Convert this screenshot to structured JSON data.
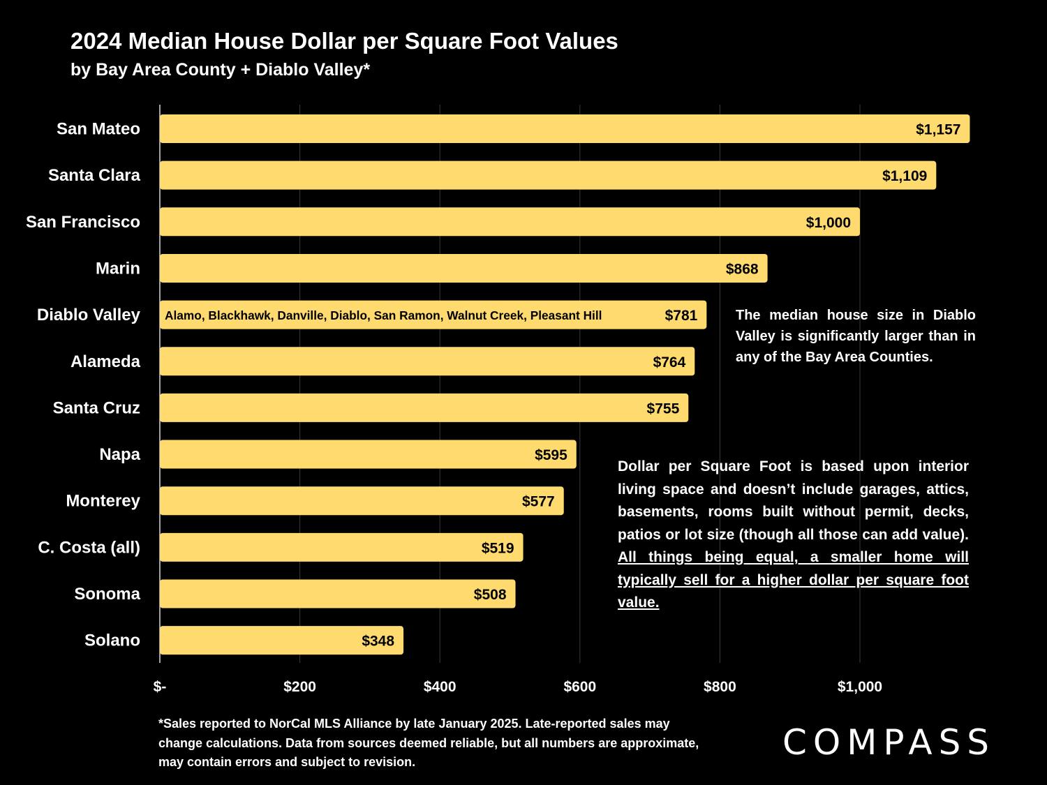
{
  "title": "2024 Median House Dollar per Square Foot Values",
  "subtitle": "by Bay Area County + Diablo Valley*",
  "colors": {
    "bar": "#FFDA6E",
    "background": "#000000",
    "text": "#FFFFFF",
    "gridline": "#3a3a3a"
  },
  "chart_data": {
    "type": "bar",
    "orientation": "horizontal",
    "title": "2024 Median House Dollar per Square Foot Values",
    "subtitle": "by Bay Area County + Diablo Valley*",
    "categories": [
      "San Mateo",
      "Santa Clara",
      "San Francisco",
      "Marin",
      "Diablo Valley",
      "Alameda",
      "Santa Cruz",
      "Napa",
      "Monterey",
      "C. Costa (all)",
      "Sonoma",
      "Solano"
    ],
    "values": [
      1157,
      1109,
      1000,
      868,
      781,
      764,
      755,
      595,
      577,
      519,
      508,
      348
    ],
    "data_labels": [
      "$1,157",
      "$1,109",
      "$1,000",
      "$868",
      "$781",
      "$764",
      "$755",
      "$595",
      "$577",
      "$519",
      "$508",
      "$348"
    ],
    "bar_annotations": [
      {
        "category": "Diablo Valley",
        "text": "Alamo, Blackhawk, Danville, Diablo, San Ramon, Walnut Creek, Pleasant Hill"
      }
    ],
    "x_ticks": [
      0,
      200,
      400,
      600,
      800,
      1000
    ],
    "x_tick_labels": [
      "$-",
      "$200",
      "$400",
      "$600",
      "$800",
      "$1,000"
    ],
    "xlim": [
      0,
      1180
    ],
    "grid": "vertical",
    "legend": "none"
  },
  "notes": {
    "house_size": "The median house size in Diablo Valley is significantly larger than in any of the Bay Area Counties.",
    "dpsf_intro": "Dollar per Square Foot is based upon interior living space and doesn’t include garages, attics, basements, rooms built without permit, decks, patios or lot size (though all those can add value). ",
    "dpsf_emphasis": "All things being equal, a smaller home will typically sell for a higher dollar per square foot value."
  },
  "footnote": "*Sales reported to NorCal MLS Alliance by late January 2025. Late-reported sales may change calculations. Data from sources deemed reliable, but all numbers are approximate, may contain errors and subject to revision.",
  "logo": "COMPASS"
}
